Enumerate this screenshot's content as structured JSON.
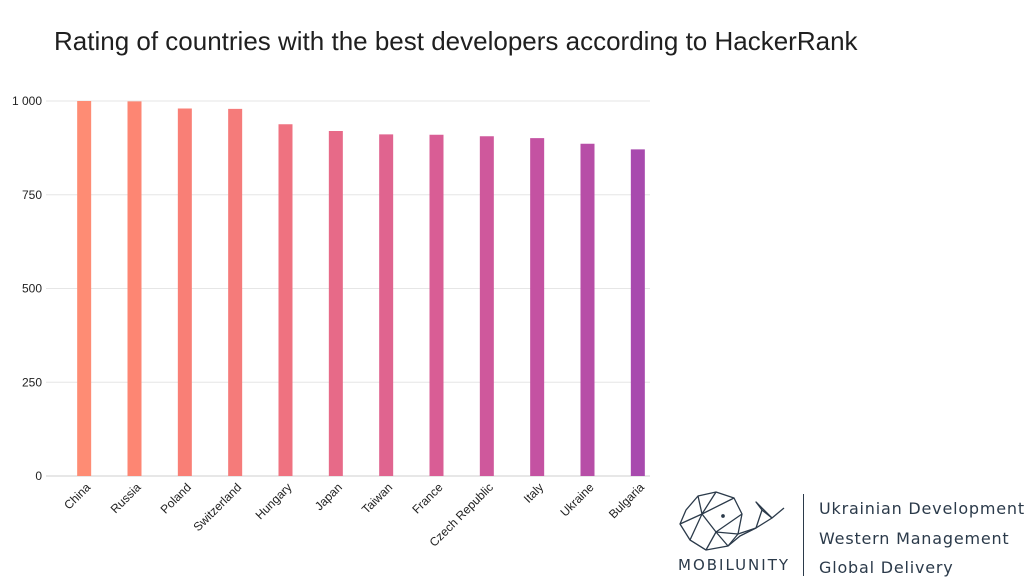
{
  "chart_data": {
    "type": "bar",
    "title": "Rating of countries with the best developers according to HackerRank",
    "xlabel": "",
    "ylabel": "",
    "categories": [
      "China",
      "Russia",
      "Poland",
      "Switzerland",
      "Hungary",
      "Japan",
      "Taiwan",
      "France",
      "Czech Republic",
      "Italy",
      "Ukraine",
      "Bulgaria"
    ],
    "values": [
      1000,
      999,
      980,
      979,
      938,
      920,
      911,
      910,
      906,
      901,
      886,
      871
    ],
    "ylim": [
      0,
      1000
    ],
    "yticks": [
      0,
      250,
      500,
      750,
      1000
    ],
    "ytick_labels": [
      "0",
      "250",
      "500",
      "750",
      "1 000"
    ],
    "grid": true,
    "legend": "none",
    "colors": [
      "#fe8c74",
      "#fd8673",
      "#f97f76",
      "#f57b7a",
      "#ef7280",
      "#e76a88",
      "#e0648f",
      "#d95d95",
      "#cf589c",
      "#c452a2",
      "#b74ea7",
      "#a84aae"
    ]
  },
  "branding": {
    "name": "MOBILUNITY",
    "taglines": [
      "Ukrainian Development",
      "Western Management",
      "Global Delivery"
    ],
    "color": "#2b3a4a"
  }
}
